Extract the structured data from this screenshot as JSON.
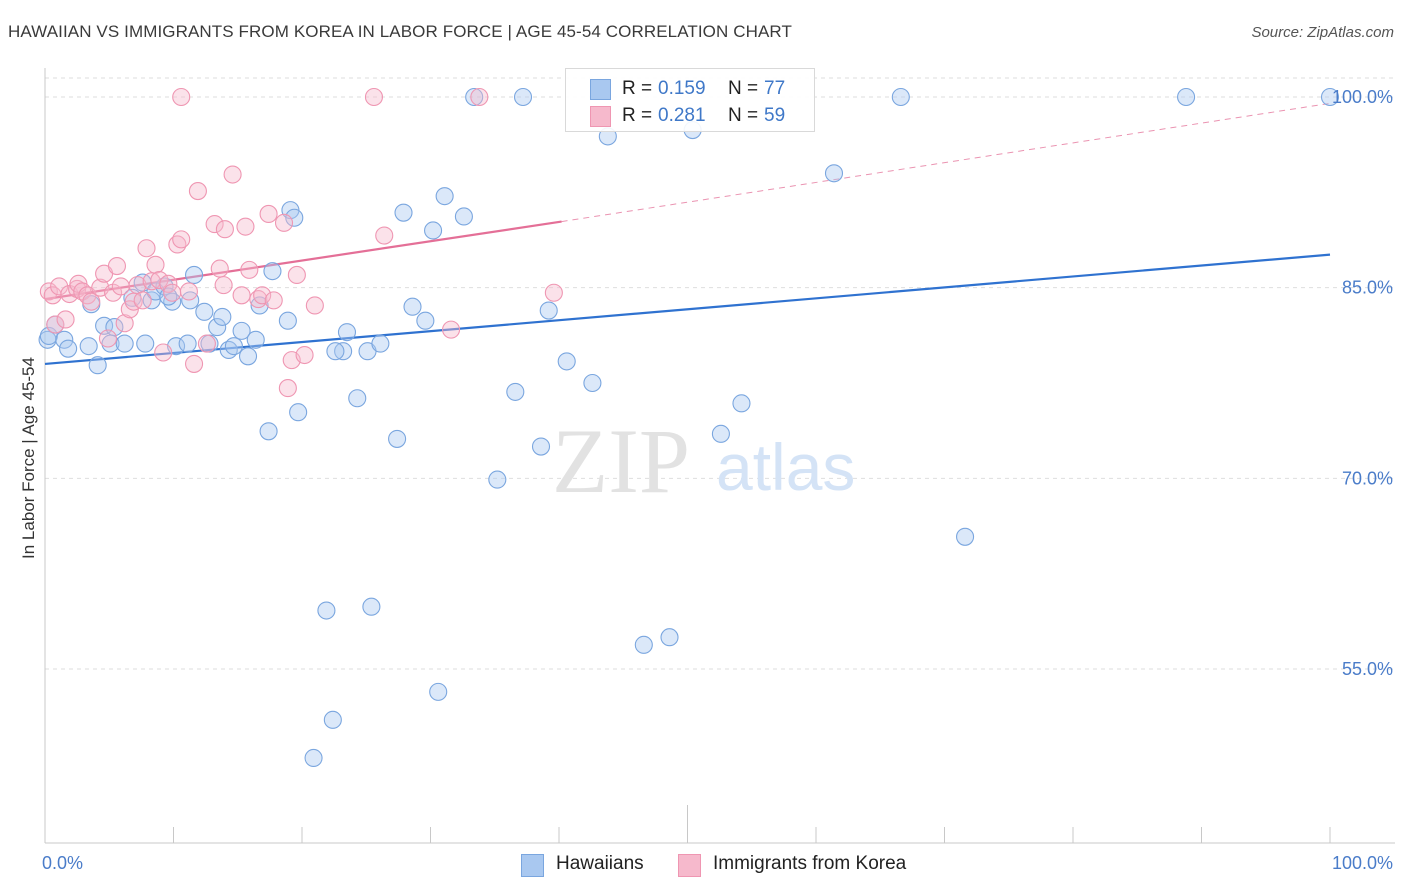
{
  "title": "HAWAIIAN VS IMMIGRANTS FROM KOREA IN LABOR FORCE | AGE 45-54 CORRELATION CHART",
  "source": "Source: ZipAtlas.com",
  "watermark": {
    "zip": "ZIP",
    "atlas": "atlas"
  },
  "legend": {
    "rows": [
      {
        "r_label": "R =",
        "r_value": "0.159",
        "n_label": "N =",
        "n_value": "77"
      },
      {
        "r_label": "R =",
        "r_value": "0.281",
        "n_label": "N =",
        "n_value": "59"
      }
    ]
  },
  "bottom_legend": {
    "hawaiians": "Hawaiians",
    "korea": "Immigrants from Korea"
  },
  "colors": {
    "blue_fill": "#a9c8f0",
    "blue_stroke": "#7aa6df",
    "blue_line": "#2f72d0",
    "pink_fill": "#f6b9cc",
    "pink_stroke": "#ef96b2",
    "pink_line": "#e46f97",
    "grid": "#dedede",
    "axis_text": "#4a7cc9"
  },
  "chart_data": {
    "type": "scatter",
    "title": "HAWAIIAN VS IMMIGRANTS FROM KOREA IN LABOR FORCE | AGE 45-54 CORRELATION CHART",
    "ylabel": "In Labor Force | Age 45-54",
    "xlabel": "",
    "xlim": [
      0,
      100
    ],
    "ylim": [
      41,
      102
    ],
    "x_tick_labels": [
      "0.0%",
      "100.0%"
    ],
    "y_ticks": [
      {
        "value": 100,
        "label": "100.0%"
      },
      {
        "value": 85,
        "label": "85.0%"
      },
      {
        "value": 70,
        "label": "70.0%"
      },
      {
        "value": 55,
        "label": "55.0%"
      }
    ],
    "series": [
      {
        "name": "Hawaiians",
        "color": "blue",
        "trend": {
          "x0": 0,
          "y0": 79.0,
          "x1": 100,
          "y1": 87.6
        },
        "points": [
          [
            0.2,
            80.9
          ],
          [
            0.3,
            81.2
          ],
          [
            0.8,
            82.1
          ],
          [
            1.5,
            80.9
          ],
          [
            1.8,
            80.2
          ],
          [
            3.4,
            80.4
          ],
          [
            3.6,
            83.7
          ],
          [
            4.1,
            78.9
          ],
          [
            4.6,
            82.0
          ],
          [
            5.1,
            80.6
          ],
          [
            5.4,
            81.9
          ],
          [
            6.2,
            80.6
          ],
          [
            6.8,
            84.2
          ],
          [
            7.6,
            85.4
          ],
          [
            7.8,
            80.6
          ],
          [
            8.3,
            84.0
          ],
          [
            8.6,
            84.7
          ],
          [
            9.3,
            85.1
          ],
          [
            9.9,
            83.9
          ],
          [
            10.2,
            80.4
          ],
          [
            11.3,
            84.0
          ],
          [
            11.6,
            86.0
          ],
          [
            12.4,
            83.1
          ],
          [
            12.8,
            80.6
          ],
          [
            13.4,
            81.9
          ],
          [
            13.8,
            82.7
          ],
          [
            14.3,
            80.1
          ],
          [
            14.7,
            80.4
          ],
          [
            15.3,
            81.6
          ],
          [
            15.8,
            79.6
          ],
          [
            16.4,
            80.9
          ],
          [
            16.7,
            83.6
          ],
          [
            17.4,
            73.7
          ],
          [
            17.7,
            86.3
          ],
          [
            18.9,
            82.4
          ],
          [
            19.1,
            91.1
          ],
          [
            19.4,
            90.5
          ],
          [
            19.7,
            75.2
          ],
          [
            21.9,
            59.6
          ],
          [
            22.4,
            51.0
          ],
          [
            23.2,
            80.0
          ],
          [
            23.5,
            81.5
          ],
          [
            24.3,
            76.3
          ],
          [
            25.1,
            80.0
          ],
          [
            25.4,
            59.9
          ],
          [
            26.1,
            80.6
          ],
          [
            27.4,
            73.1
          ],
          [
            27.9,
            90.9
          ],
          [
            28.6,
            83.5
          ],
          [
            29.6,
            82.4
          ],
          [
            30.2,
            89.5
          ],
          [
            30.6,
            53.2
          ],
          [
            31.1,
            92.2
          ],
          [
            32.6,
            90.6
          ],
          [
            33.4,
            100.0
          ],
          [
            35.2,
            69.9
          ],
          [
            36.6,
            76.8
          ],
          [
            37.2,
            100.0
          ],
          [
            38.6,
            72.5
          ],
          [
            39.2,
            83.2
          ],
          [
            40.6,
            79.2
          ],
          [
            42.6,
            77.5
          ],
          [
            43.8,
            96.9
          ],
          [
            46.6,
            56.9
          ],
          [
            48.6,
            57.5
          ],
          [
            50.4,
            97.4
          ],
          [
            52.6,
            73.5
          ],
          [
            54.2,
            75.9
          ],
          [
            61.4,
            94.0
          ],
          [
            66.6,
            100.0
          ],
          [
            71.6,
            65.4
          ],
          [
            88.8,
            100.0
          ],
          [
            100.0,
            100.0
          ],
          [
            20.9,
            48.0
          ],
          [
            11.1,
            80.6
          ],
          [
            9.6,
            84.3
          ],
          [
            22.6,
            80.0
          ]
        ]
      },
      {
        "name": "Immigrants from Korea",
        "color": "pink",
        "trend": {
          "x0": 0,
          "y0": 84.1,
          "x1": 40.2,
          "y1": 90.2
        },
        "trend_ext": {
          "x0": 40.2,
          "y0": 90.2,
          "x1": 100,
          "y1": 99.5
        },
        "points": [
          [
            0.3,
            84.7
          ],
          [
            0.6,
            84.4
          ],
          [
            0.8,
            82.1
          ],
          [
            1.1,
            85.1
          ],
          [
            1.6,
            82.5
          ],
          [
            1.9,
            84.5
          ],
          [
            2.5,
            84.9
          ],
          [
            2.6,
            85.3
          ],
          [
            2.9,
            84.7
          ],
          [
            3.3,
            84.4
          ],
          [
            3.6,
            83.9
          ],
          [
            4.3,
            85.0
          ],
          [
            4.6,
            86.1
          ],
          [
            4.9,
            81.0
          ],
          [
            5.3,
            84.6
          ],
          [
            5.6,
            86.7
          ],
          [
            5.9,
            85.1
          ],
          [
            6.2,
            82.2
          ],
          [
            6.6,
            83.3
          ],
          [
            6.9,
            83.9
          ],
          [
            7.2,
            85.2
          ],
          [
            7.6,
            84.0
          ],
          [
            7.9,
            88.1
          ],
          [
            8.3,
            85.5
          ],
          [
            8.6,
            86.8
          ],
          [
            8.9,
            85.6
          ],
          [
            9.2,
            79.9
          ],
          [
            9.6,
            85.3
          ],
          [
            9.9,
            84.6
          ],
          [
            10.3,
            88.4
          ],
          [
            10.6,
            88.8
          ],
          [
            11.2,
            84.7
          ],
          [
            11.6,
            79.0
          ],
          [
            11.9,
            92.6
          ],
          [
            12.6,
            80.6
          ],
          [
            13.2,
            90.0
          ],
          [
            13.6,
            86.5
          ],
          [
            14.0,
            89.6
          ],
          [
            14.6,
            93.9
          ],
          [
            15.3,
            84.4
          ],
          [
            15.6,
            89.8
          ],
          [
            15.9,
            86.4
          ],
          [
            16.6,
            84.1
          ],
          [
            16.9,
            84.4
          ],
          [
            17.4,
            90.8
          ],
          [
            17.8,
            84.0
          ],
          [
            18.6,
            90.1
          ],
          [
            18.9,
            77.1
          ],
          [
            19.2,
            79.3
          ],
          [
            19.6,
            86.0
          ],
          [
            20.2,
            79.7
          ],
          [
            21.0,
            83.6
          ],
          [
            25.6,
            100.0
          ],
          [
            26.4,
            89.1
          ],
          [
            31.6,
            81.7
          ],
          [
            33.8,
            100.0
          ],
          [
            39.6,
            84.6
          ],
          [
            10.6,
            100.0
          ],
          [
            13.9,
            85.2
          ]
        ]
      }
    ]
  }
}
